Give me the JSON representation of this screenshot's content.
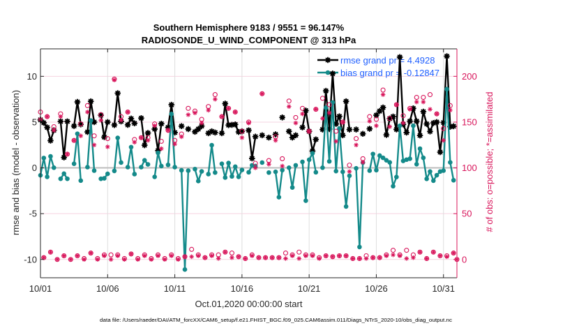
{
  "colors": {
    "rmse": "#000000",
    "bias": "#148a8a",
    "possible": "#d8145a",
    "assimilated": "#d8145a",
    "legend_text": "#1f5fff",
    "right_axis": "#d8145a"
  },
  "footer": {
    "data_file": "data file: /Users/raeder/DAI/ATM_forcXX/CAM6_setup/f.e21.FHIST_BGC.f09_025.CAM6assim.011/Diags_NTrS_2020-10/obs_diag_output.nc"
  },
  "chart_data": {
    "type": "line",
    "title": [
      "Southern Hemisphere 9183 / 9551 = 96.147%",
      "RADIOSONDE_U_WIND_COMPONENT @ 313 hPa"
    ],
    "xlabel": "Oct.01,2020 00:00:00 start",
    "ylabel": "rmse and bias (model - observation)",
    "ylabel_right": "# of obs: o=possible; *=assimilated",
    "x_unit": "days",
    "x_start": 0,
    "x_step": 0.25,
    "xlim": [
      0,
      31
    ],
    "xticks": [
      {
        "value": 0,
        "label": "10/01"
      },
      {
        "value": 5,
        "label": "10/06"
      },
      {
        "value": 10,
        "label": "10/11"
      },
      {
        "value": 15,
        "label": "10/16"
      },
      {
        "value": 20,
        "label": "10/21"
      },
      {
        "value": 25,
        "label": "10/26"
      },
      {
        "value": 30,
        "label": "10/31"
      }
    ],
    "ylim": [
      -12,
      13
    ],
    "yticks": [
      {
        "value": -10,
        "label": "-10"
      },
      {
        "value": -5,
        "label": "-5"
      },
      {
        "value": 0,
        "label": "0"
      },
      {
        "value": 5,
        "label": "5"
      },
      {
        "value": 10,
        "label": "10"
      }
    ],
    "ylim_right": [
      -20,
      230
    ],
    "yticks_right": [
      {
        "value": 0,
        "label": "0"
      },
      {
        "value": 50,
        "label": "50"
      },
      {
        "value": 100,
        "label": "100"
      },
      {
        "value": 150,
        "label": "150"
      },
      {
        "value": 200,
        "label": "200"
      }
    ],
    "grid": true,
    "legend": {
      "position": "top-right",
      "entries": [
        {
          "series": "rmse",
          "label": "rmse grand pr = 4.4928"
        },
        {
          "series": "bias",
          "label": "bias grand pr = -0.12847"
        }
      ]
    },
    "series": [
      {
        "name": "rmse",
        "axis": "left",
        "marker": "*",
        "values": [
          5.25,
          4.92,
          4.42,
          2.98,
          4.11,
          null,
          5.08,
          1.14,
          5.08,
          null,
          4.57,
          7.2,
          4.75,
          null,
          3.92,
          7.27,
          5.0,
          null,
          5.76,
          3.36,
          5.0,
          null,
          4.68,
          8.16,
          5.08,
          null,
          4.7,
          5.38,
          4.87,
          null,
          5.43,
          2.48,
          3.81,
          null,
          4.24,
          1.89,
          4.82,
          null,
          4.42,
          6.89,
          3.86,
          null,
          4.56,
          null,
          4.24,
          null,
          3.94,
          4.24,
          4.57,
          null,
          3.79,
          3.99,
          3.86,
          null,
          3.79,
          7.02,
          4.67,
          4.7,
          4.75,
          3.92,
          3.99,
          null,
          4.11,
          1.04,
          3.41,
          null,
          3.56,
          null,
          3.31,
          null,
          3.66,
          null,
          5.51,
          null,
          3.99,
          3.31,
          3.56,
          null,
          4.42,
          6.26,
          3.99,
          1.84,
          3.11,
          null,
          4.19,
          8.41,
          4.24,
          10.3,
          4.8,
          5.63,
          3.56,
          7.27,
          4.19,
          null,
          4.19,
          null,
          3.72,
          null,
          4.27,
          null,
          5.76,
          6.2,
          6.59,
          3.6,
          5.38,
          5.6,
          4.2,
          12.1,
          4.75,
          3.86,
          5.1,
          6.5,
          5.1,
          3.54,
          6.14,
          4.8,
          3.98,
          4.9,
          5.0,
          1.72,
          4.95,
          12.2,
          4.5,
          4.55,
          null
        ]
      },
      {
        "name": "bias",
        "axis": "left",
        "marker": "o",
        "values": [
          -0.81,
          1.08,
          -0.98,
          1.26,
          0.02,
          null,
          -1.19,
          -0.63,
          -1.19,
          null,
          0.45,
          3.73,
          -1.39,
          null,
          0.08,
          5.17,
          -0.3,
          null,
          -1.19,
          -1.14,
          -0.65,
          null,
          -0.33,
          3.28,
          0.58,
          null,
          0.08,
          2.27,
          -0.68,
          null,
          0.08,
          0.83,
          0.38,
          null,
          -0.98,
          1.64,
          0.2,
          null,
          0.33,
          5.89,
          0.08,
          null,
          -0.27,
          -11.1,
          -0.3,
          null,
          -0.13,
          -1.44,
          -0.38,
          null,
          -0.68,
          2.48,
          -0.51,
          null,
          0.45,
          -1.06,
          0.53,
          -0.93,
          0.13,
          -0.98,
          -0.23,
          null,
          -0.48,
          0.28,
          0.2,
          null,
          0.58,
          null,
          -0.51,
          null,
          -0.43,
          -3.2,
          -0.25,
          null,
          0.02,
          -2.14,
          0.28,
          null,
          0.66,
          -3.58,
          0.89,
          1.59,
          -0.48,
          null,
          0.02,
          6.57,
          0.71,
          7.14,
          -0.35,
          4.3,
          -0.43,
          -4.22,
          -0.86,
          null,
          -0.05,
          -8.64,
          0.58,
          null,
          -0.3,
          1.52,
          -0.25,
          1.34,
          1.1,
          0.83,
          0.6,
          -2.0,
          -1.0,
          4.6,
          0.76,
          0.9,
          1.0,
          4.6,
          0.4,
          2.1,
          1.1,
          -1.2,
          -0.4,
          -1.4,
          -0.8,
          -0.4,
          -0.3,
          8.6,
          0.6,
          -1.35,
          null
        ]
      },
      {
        "name": "possible",
        "axis": "right",
        "marker": "o",
        "values": [
          161,
          2,
          156,
          8,
          145,
          0,
          159,
          4,
          115,
          0,
          130,
          4,
          148,
          1,
          168,
          7,
          135,
          1,
          158,
          5,
          132,
          5,
          197,
          5,
          156,
          1,
          161,
          6,
          131,
          1,
          133,
          5,
          133,
          1,
          148,
          5,
          129,
          1,
          141,
          5,
          130,
          1,
          137,
          3,
          165,
          11,
          162,
          5,
          153,
          2,
          167,
          5,
          180,
          5,
          156,
          8,
          165,
          7,
          161,
          3,
          140,
          1,
          150,
          5,
          105,
          2,
          181,
          2,
          108,
          2,
          134,
          2,
          110,
          7,
          173,
          5,
          155,
          8,
          165,
          5,
          140,
          5,
          164,
          2,
          176,
          4,
          169,
          3,
          140,
          4,
          150,
          4,
          103,
          1,
          132,
          1,
          110,
          4,
          156,
          2,
          153,
          2,
          185,
          5,
          154,
          10,
          169,
          5,
          157,
          10,
          165,
          5,
          177,
          8,
          177,
          1,
          180,
          8,
          159,
          4,
          143,
          4,
          168,
          7,
          0
        ]
      },
      {
        "name": "assimilated",
        "axis": "right",
        "marker": "*",
        "values": [
          153,
          2,
          156,
          8,
          141,
          0,
          156,
          4,
          115,
          0,
          130,
          4,
          135,
          0,
          161,
          7,
          125,
          0,
          152,
          4,
          123,
          0,
          196,
          4,
          152,
          0,
          161,
          6,
          128,
          0,
          133,
          4,
          130,
          0,
          146,
          4,
          121,
          0,
          141,
          4,
          126,
          0,
          134,
          3,
          158,
          3,
          160,
          4,
          149,
          2,
          163,
          4,
          175,
          1,
          156,
          8,
          165,
          2,
          161,
          3,
          133,
          1,
          149,
          4,
          100,
          2,
          181,
          2,
          104,
          2,
          130,
          2,
          102,
          1,
          167,
          4,
          149,
          1,
          159,
          4,
          140,
          4,
          164,
          1,
          154,
          4,
          160,
          3,
          129,
          4,
          150,
          4,
          96,
          1,
          125,
          1,
          106,
          1,
          151,
          2,
          146,
          2,
          180,
          4,
          145,
          5,
          169,
          4,
          149,
          1,
          164,
          2,
          172,
          8,
          172,
          1,
          164,
          8,
          159,
          4,
          130,
          3,
          163,
          7,
          0
        ]
      }
    ]
  }
}
